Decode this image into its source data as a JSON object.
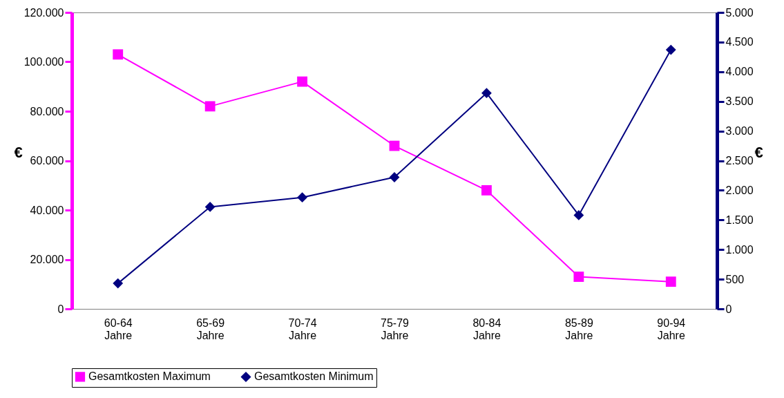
{
  "chart_data": {
    "type": "line",
    "ylabel": "€",
    "y2label": "€",
    "categories": [
      "60-64 Jahre",
      "65-69 Jahre",
      "70-74 Jahre",
      "75-79 Jahre",
      "80-84 Jahre",
      "85-89 Jahre",
      "90-94 Jahre"
    ],
    "series": [
      {
        "name": "Gesamtkosten Maximum",
        "color": "#ff00ff",
        "marker": "square",
        "values": [
          103000,
          82000,
          92000,
          66000,
          48000,
          13000,
          11000
        ]
      },
      {
        "name": "Gesamtkosten Minimum",
        "color": "#000080",
        "marker": "diamond",
        "axis": "y2",
        "values": [
          430,
          1720,
          1880,
          2220,
          3640,
          1580,
          4370
        ]
      }
    ],
    "ylim": [
      0,
      120000
    ],
    "yticks": [
      0,
      {
        "value": 20000,
        "label": "20.000"
      },
      {
        "value": 40000,
        "label": "40.000"
      },
      {
        "value": 60000,
        "label": "60.000"
      },
      {
        "value": 80000,
        "label": "80.000"
      },
      {
        "value": 100000,
        "label": "100.000"
      },
      {
        "value": 120000,
        "label": "120.000"
      }
    ],
    "y2lim": [
      0,
      5000
    ],
    "y2ticks": [
      0,
      500,
      {
        "value": 1000,
        "label": "1.000"
      },
      {
        "value": 1500,
        "label": "1.500"
      },
      {
        "value": 2000,
        "label": "2.000"
      },
      {
        "value": 2500,
        "label": "2.500"
      },
      {
        "value": 3000,
        "label": "3.000"
      },
      {
        "value": 3500,
        "label": "3.500"
      },
      {
        "value": 4000,
        "label": "4.000"
      },
      {
        "value": 4500,
        "label": "4.500"
      },
      {
        "value": 5000,
        "label": "5.000"
      }
    ],
    "grid": false,
    "legend": "bottom",
    "line_style": "solid"
  }
}
